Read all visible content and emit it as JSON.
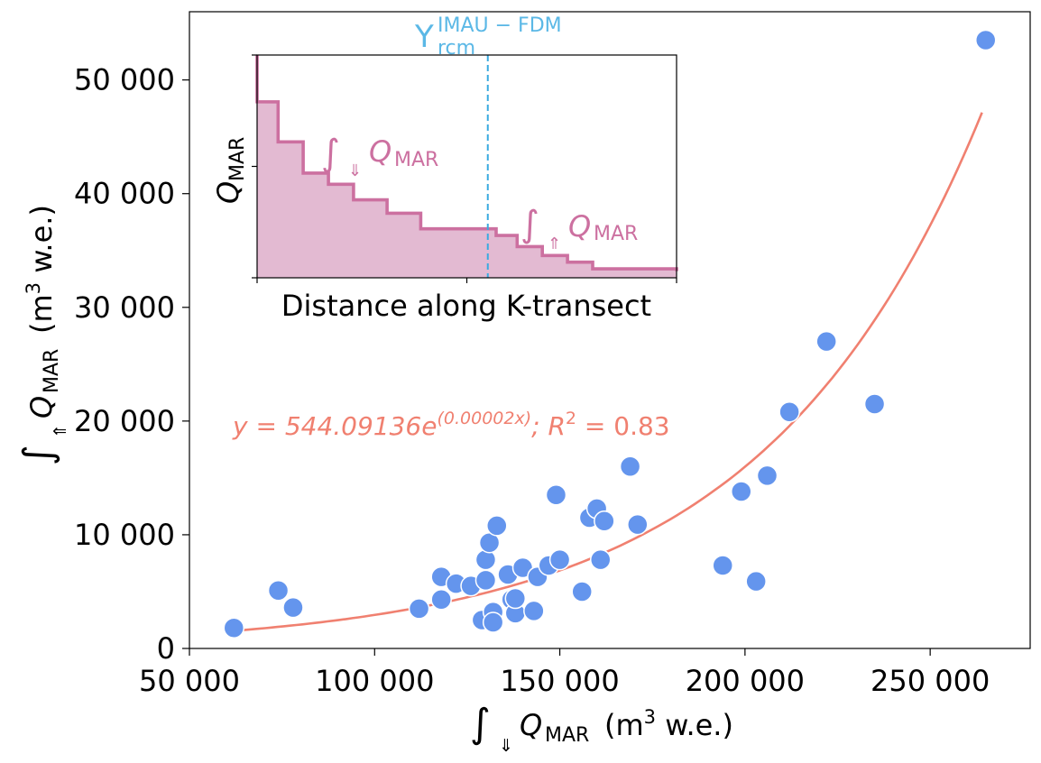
{
  "chart_data": [
    {
      "type": "scatter",
      "xlabel_symbol": "∫",
      "xlabel_sub": "⇓",
      "xlabel_var": "Q",
      "xlabel_var_sub": "MAR",
      "xlabel_units": "(m",
      "xlabel_units_sup": "3",
      "xlabel_units_end": " w.e.)",
      "ylabel_symbol": "∫",
      "ylabel_sub": "⇑",
      "ylabel_var": "Q",
      "ylabel_var_sub": "MAR",
      "ylabel_units": "(m",
      "ylabel_units_sup": "3",
      "ylabel_units_end": " w.e.)",
      "xlim": [
        50000,
        277000
      ],
      "ylim": [
        0,
        56000
      ],
      "xticks": [
        50000,
        100000,
        150000,
        200000,
        250000
      ],
      "xtick_labels": [
        "50 000",
        "100 000",
        "150 000",
        "200 000",
        "250 000"
      ],
      "yticks": [
        0,
        10000,
        20000,
        30000,
        40000,
        50000
      ],
      "ytick_labels": [
        "0",
        "10 000",
        "20 000",
        "30 000",
        "40 000",
        "50 000"
      ],
      "grid": false,
      "point_color": "#6495ED",
      "points": [
        [
          62000,
          1800
        ],
        [
          74000,
          5100
        ],
        [
          78000,
          3600
        ],
        [
          112000,
          3500
        ],
        [
          118000,
          4300
        ],
        [
          118000,
          6300
        ],
        [
          122000,
          5700
        ],
        [
          126000,
          5500
        ],
        [
          129000,
          2500
        ],
        [
          130000,
          6000
        ],
        [
          130000,
          7800
        ],
        [
          131000,
          9300
        ],
        [
          132000,
          3200
        ],
        [
          132000,
          2300
        ],
        [
          133000,
          10800
        ],
        [
          136000,
          6500
        ],
        [
          137000,
          4300
        ],
        [
          138000,
          3100
        ],
        [
          138000,
          4400
        ],
        [
          140000,
          7100
        ],
        [
          143000,
          3300
        ],
        [
          144000,
          6300
        ],
        [
          147000,
          7300
        ],
        [
          149000,
          13500
        ],
        [
          150000,
          7800
        ],
        [
          156000,
          5000
        ],
        [
          158000,
          11500
        ],
        [
          160000,
          12300
        ],
        [
          161000,
          7800
        ],
        [
          162000,
          11200
        ],
        [
          169000,
          16000
        ],
        [
          171000,
          10900
        ],
        [
          194000,
          7300
        ],
        [
          199000,
          13800
        ],
        [
          203000,
          5900
        ],
        [
          206000,
          15200
        ],
        [
          212000,
          20800
        ],
        [
          222000,
          27000
        ],
        [
          235000,
          21500
        ],
        [
          265000,
          53500
        ]
      ],
      "fit": {
        "color": "#F08070",
        "a": 544.09136,
        "b": 1.69e-05,
        "x_range": [
          62000,
          264000
        ],
        "label_lhs": "y = 544.09136e",
        "label_exp": "(0.00002x)",
        "label_mid": "; R",
        "label_r2_sup": "2",
        "label_rhs": " = 0.83"
      }
    },
    {
      "type": "area",
      "xlabel": "Distance along K-transect",
      "ylabel_var": "Q",
      "ylabel_var_sub": "MAR",
      "fill_color": "#E3BAD2",
      "line_color": "#CC70A0",
      "steps_x": [
        0,
        0.05,
        0.11,
        0.17,
        0.23,
        0.31,
        0.39,
        0.57,
        0.62,
        0.68,
        0.74,
        0.8,
        1.0
      ],
      "steps_y": [
        0.79,
        0.61,
        0.47,
        0.42,
        0.35,
        0.29,
        0.22,
        0.19,
        0.14,
        0.1,
        0.07,
        0.04,
        0.03
      ],
      "start_y": 1.0,
      "vline_x": 0.55,
      "vline_color": "#3AAAE0",
      "vline_label": "Y",
      "vline_label_sup": "IMAU − FDM",
      "vline_label_sub": "rcm",
      "vline_label_color": "#5BB8E6",
      "annotation_left": {
        "symbol": "∫",
        "sub": "⇓",
        "var": "Q",
        "var_sub": "MAR"
      },
      "annotation_right": {
        "symbol": "∫",
        "sub": "⇑",
        "var": "Q",
        "var_sub": "MAR"
      },
      "annotation_color": "#CC70A0",
      "yticks": [
        0.0,
        0.5,
        1.0
      ],
      "xticks": [
        0.0,
        0.5,
        1.0
      ]
    }
  ]
}
